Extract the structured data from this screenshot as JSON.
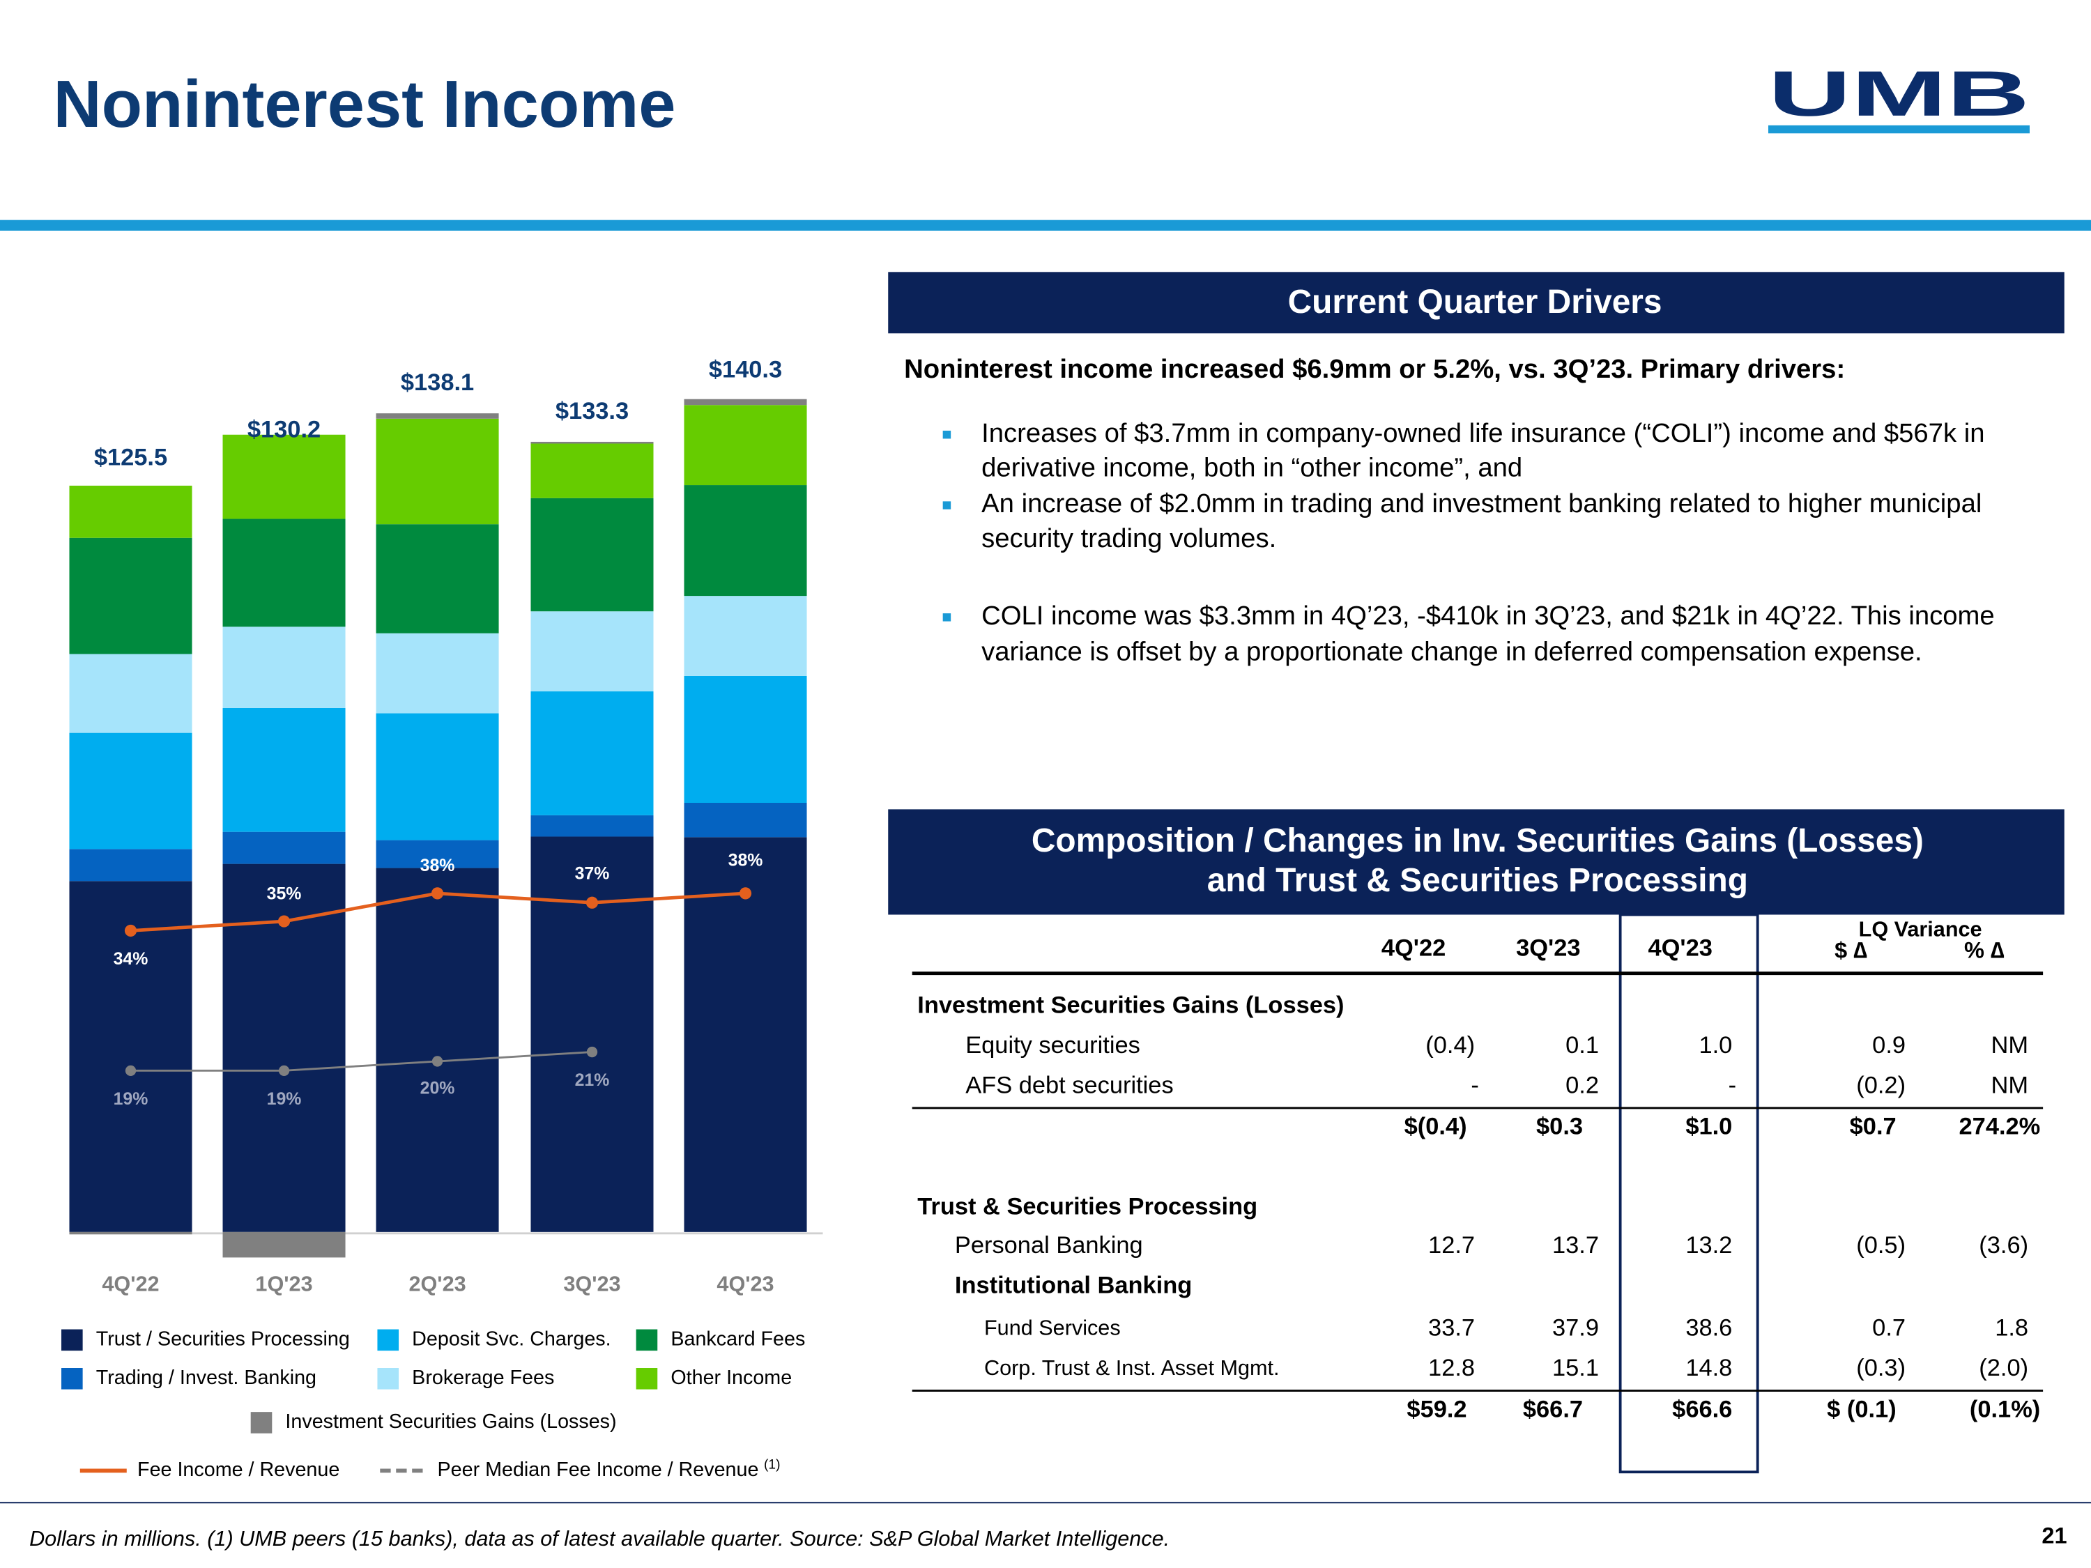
{
  "header": {
    "title": "Noninterest Income",
    "logo": "UMB"
  },
  "chart_data": {
    "type": "bar",
    "stacked": true,
    "categories": [
      "4Q'22",
      "1Q'23",
      "2Q'23",
      "3Q'23",
      "4Q'23"
    ],
    "series": [
      {
        "name": "Trust / Securities Processing",
        "color": "#0b2258",
        "values": [
          59.2,
          62.1,
          61.4,
          66.7,
          66.6
        ]
      },
      {
        "name": "Trading / Invest. Banking",
        "color": "#0563c1",
        "values": [
          5.4,
          5.4,
          4.7,
          3.6,
          5.8
        ]
      },
      {
        "name": "Deposit Svc. Charges.",
        "color": "#00adef",
        "values": [
          19.6,
          20.9,
          21.4,
          20.9,
          21.4
        ]
      },
      {
        "name": "Brokerage Fees",
        "color": "#a6e4fb",
        "values": [
          13.3,
          13.7,
          13.5,
          13.5,
          13.5
        ]
      },
      {
        "name": "Bankcard Fees",
        "color": "#008a3e",
        "values": [
          19.6,
          18.2,
          18.4,
          19.1,
          18.7
        ]
      },
      {
        "name": "Other Income",
        "color": "#66cc00",
        "values": [
          8.8,
          14.2,
          17.8,
          9.2,
          13.5
        ]
      },
      {
        "name": "Investment Securities Gains (Losses)",
        "color": "#808080",
        "values": [
          -0.4,
          -4.3,
          0.9,
          0.3,
          1.0
        ]
      }
    ],
    "line_series": [
      {
        "name": "Fee Income / Revenue",
        "color": "#e4601e",
        "axis": "y2",
        "values": [
          34,
          35,
          38,
          37,
          38
        ],
        "value_labels": [
          "34%",
          "35%",
          "38%",
          "37%",
          "38%"
        ]
      },
      {
        "name": "Peer Median Fee Income / Revenue",
        "note": "(1)",
        "color": "#808080",
        "axis": "y2",
        "dashed": true,
        "values": [
          19,
          19,
          20,
          21,
          null
        ],
        "value_labels": [
          "19%",
          "19%",
          "20%",
          "21%",
          null
        ]
      }
    ],
    "totals": [
      125.5,
      130.2,
      138.1,
      133.3,
      140.3
    ],
    "total_labels": [
      "$125.5",
      "$130.2",
      "$138.1",
      "$133.3",
      "$140.3"
    ],
    "ylim": [
      -5,
      150
    ],
    "y2lim": [
      0,
      100
    ]
  },
  "drivers": {
    "title": "Current Quarter Drivers",
    "lead": "Noninterest income increased $6.9mm or 5.2%, vs. 3Q’23. Primary drivers:",
    "bullets": [
      [
        "Increases of $3.7mm in company-owned life insurance (“COLI”) income and $567k in",
        "derivative income, both in “other income”, and"
      ],
      [
        "An increase of $2.0mm in trading and investment banking related to higher municipal",
        "security trading volumes."
      ],
      [
        "COLI income was $3.3mm in 4Q’23, -$410k in 3Q’23, and $21k in 4Q’22. This income",
        "variance is offset by a proportionate change in deferred compensation expense."
      ]
    ]
  },
  "table": {
    "title": [
      "Composition / Changes in Inv. Securities Gains (Losses)",
      "and Trust & Securities Processing"
    ],
    "columns": [
      "4Q'22",
      "3Q'23",
      "4Q'23"
    ],
    "variance_title": "LQ Variance",
    "variance_columns": [
      "$ ∆",
      "% ∆"
    ],
    "rows": [
      {
        "label": "Investment Securities Gains (Losses)"
      },
      {
        "label": "Equity securities",
        "cells": [
          "(0.4)",
          "0.1",
          "1.0",
          "0.9",
          "NM"
        ]
      },
      {
        "label": "AFS debt securities",
        "cells": [
          "-",
          "0.2",
          "-",
          "(0.2)",
          "NM"
        ]
      },
      {
        "cells": [
          "$(0.4)",
          "$0.3",
          "$1.0",
          "$0.7",
          "274.2%"
        ]
      },
      {
        "label": "Trust & Securities Processing"
      },
      {
        "label": "Personal Banking",
        "cells": [
          "12.7",
          "13.7",
          "13.2",
          "(0.5)",
          "(3.6)"
        ]
      },
      {
        "label": "Institutional Banking"
      },
      {
        "label": "Fund Services",
        "cells": [
          "33.7",
          "37.9",
          "38.6",
          "0.7",
          "1.8"
        ]
      },
      {
        "label": "Corp. Trust & Inst. Asset Mgmt.",
        "cells": [
          "12.8",
          "15.1",
          "14.8",
          "(0.3)",
          "(2.0)"
        ]
      },
      {
        "cells": [
          "$59.2",
          "$66.7",
          "$66.6",
          "$ (0.1)",
          "(0.1%)"
        ]
      }
    ]
  },
  "footer": {
    "note": "Dollars in millions. (1) UMB peers (15 banks), data as of latest available quarter. Source: S&P Global Market Intelligence.",
    "page": "21"
  }
}
